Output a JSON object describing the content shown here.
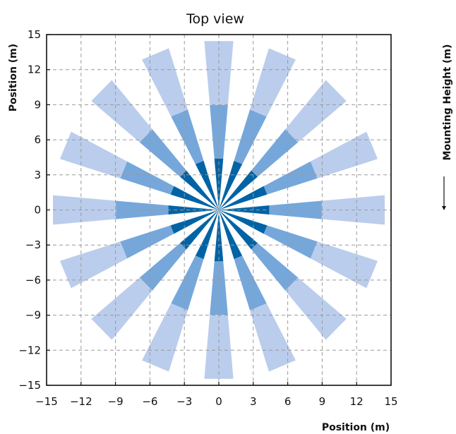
{
  "chart_data": {
    "type": "polar-sector",
    "title": "Top view",
    "xlabel": "Position (m)",
    "ylabel": "Position (m)",
    "side_label": "Mounting Height (m)",
    "xlim": [
      -15,
      15
    ],
    "ylim": [
      -15,
      15
    ],
    "xticks": [
      -15,
      -12,
      -9,
      -6,
      -3,
      0,
      3,
      6,
      9,
      12,
      15
    ],
    "yticks": [
      -15,
      -12,
      -9,
      -6,
      -3,
      0,
      3,
      6,
      9,
      12,
      15
    ],
    "xtick_labels": [
      "−15",
      "−12",
      "−9",
      "−6",
      "−3",
      "0",
      "3",
      "6",
      "9",
      "12",
      "15"
    ],
    "ytick_labels": [
      "−15",
      "−12",
      "−9",
      "−6",
      "−3",
      "0",
      "3",
      "6",
      "9",
      "12",
      "15"
    ],
    "grid": true,
    "beam_count": 16,
    "beam_angle_step_deg": 22.5,
    "beam_width_deg": 10,
    "series": [
      {
        "inner_radius_m": 9,
        "outer_radius_m": 14.5,
        "color": "#BBCDEC"
      },
      {
        "inner_radius_m": 3.5,
        "outer_radius_m": 9,
        "color": "#76A7DB"
      },
      {
        "inner_radius_m": 0,
        "outer_radius_m": 4.4,
        "color": "#0063A5"
      }
    ]
  }
}
